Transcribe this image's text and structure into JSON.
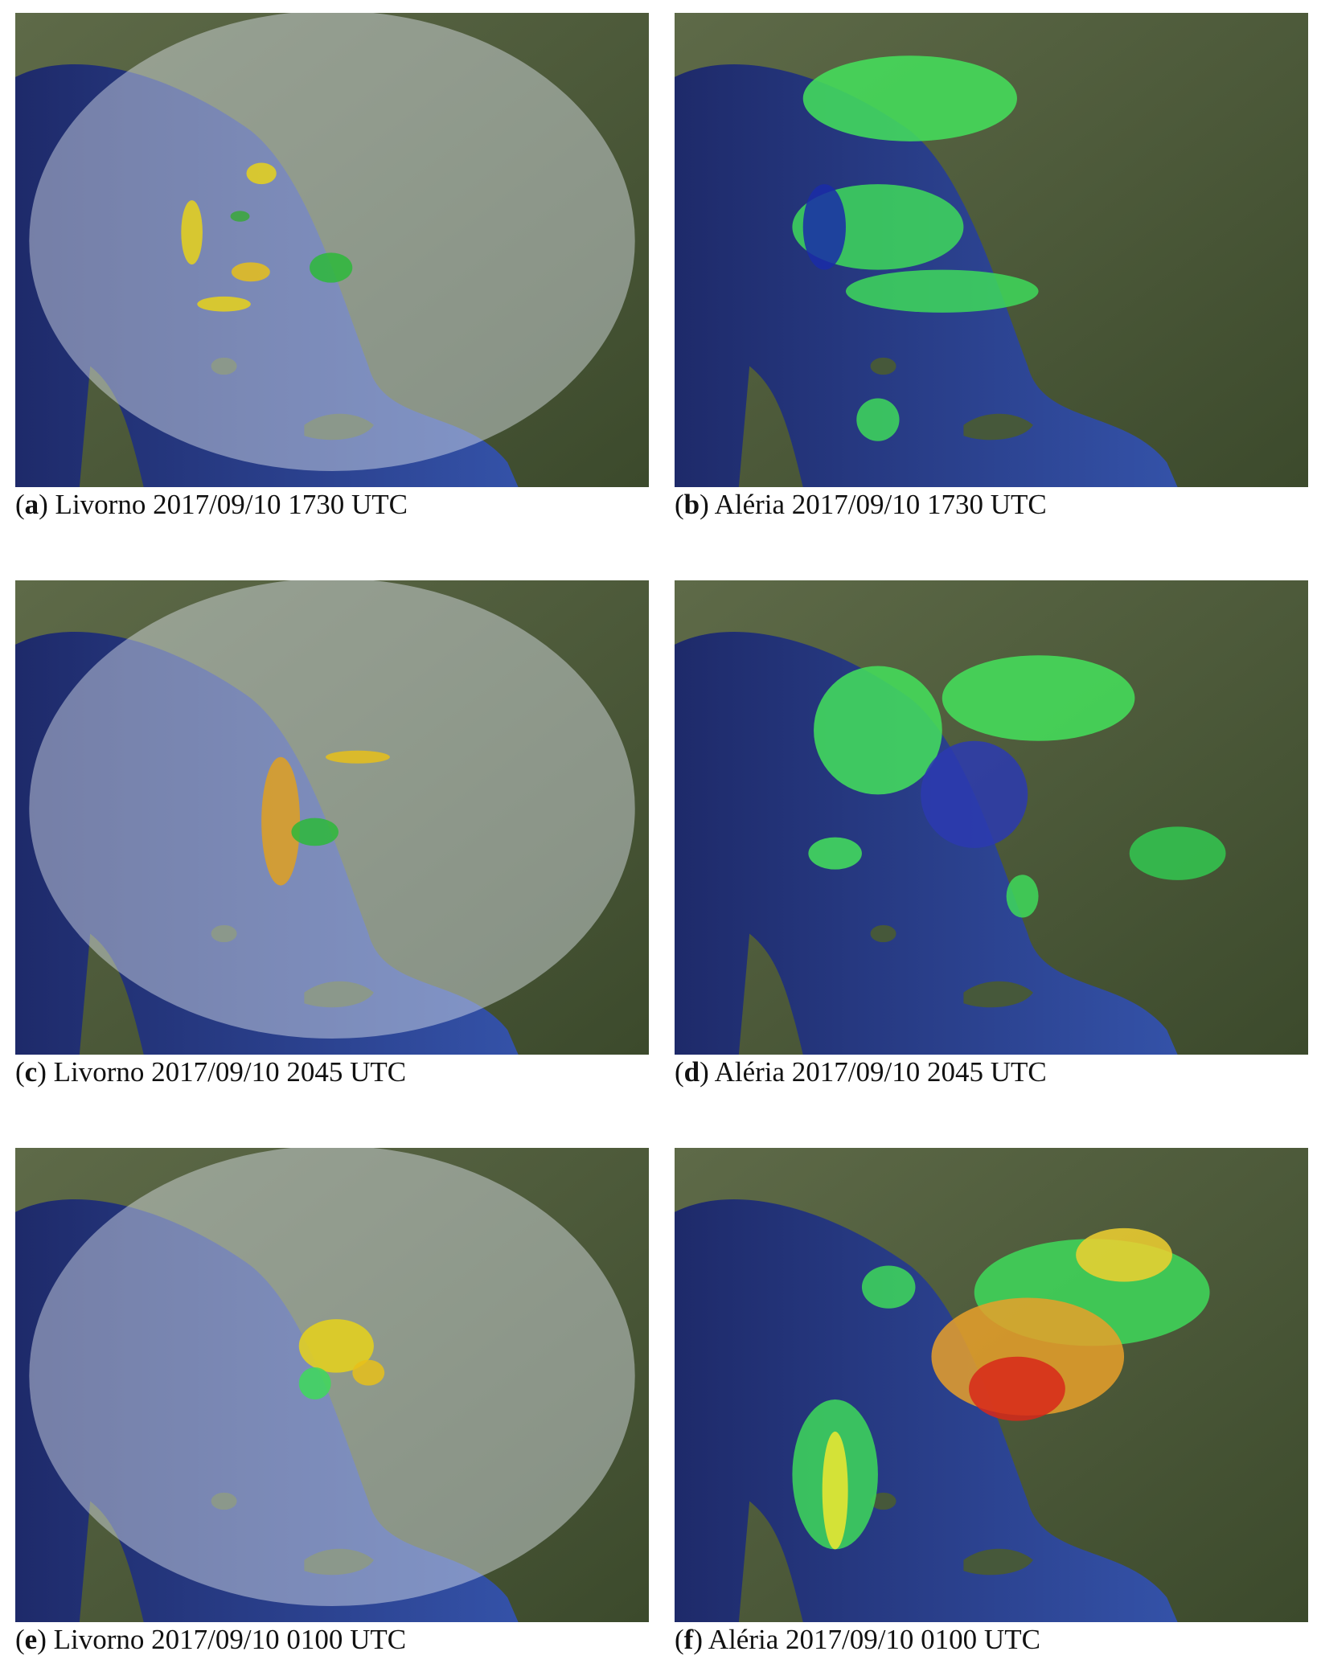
{
  "panels": [
    {
      "open": "(",
      "label": "a",
      "text": ") Livorno 2017/09/10 1730 UTC"
    },
    {
      "open": "(",
      "label": "b",
      "text": ") Aléria 2017/09/10 1730 UTC"
    },
    {
      "open": "(",
      "label": "c",
      "text": ") Livorno 2017/09/10 2045 UTC"
    },
    {
      "open": "(",
      "label": "d",
      "text": ") Aléria 2017/09/10 2045 UTC"
    },
    {
      "open": "(",
      "label": "e",
      "text": ") Livorno 2017/09/10 0100 UTC"
    },
    {
      "open": "(",
      "label": "f",
      "text": ") Aléria 2017/09/10 0100 UTC"
    }
  ]
}
